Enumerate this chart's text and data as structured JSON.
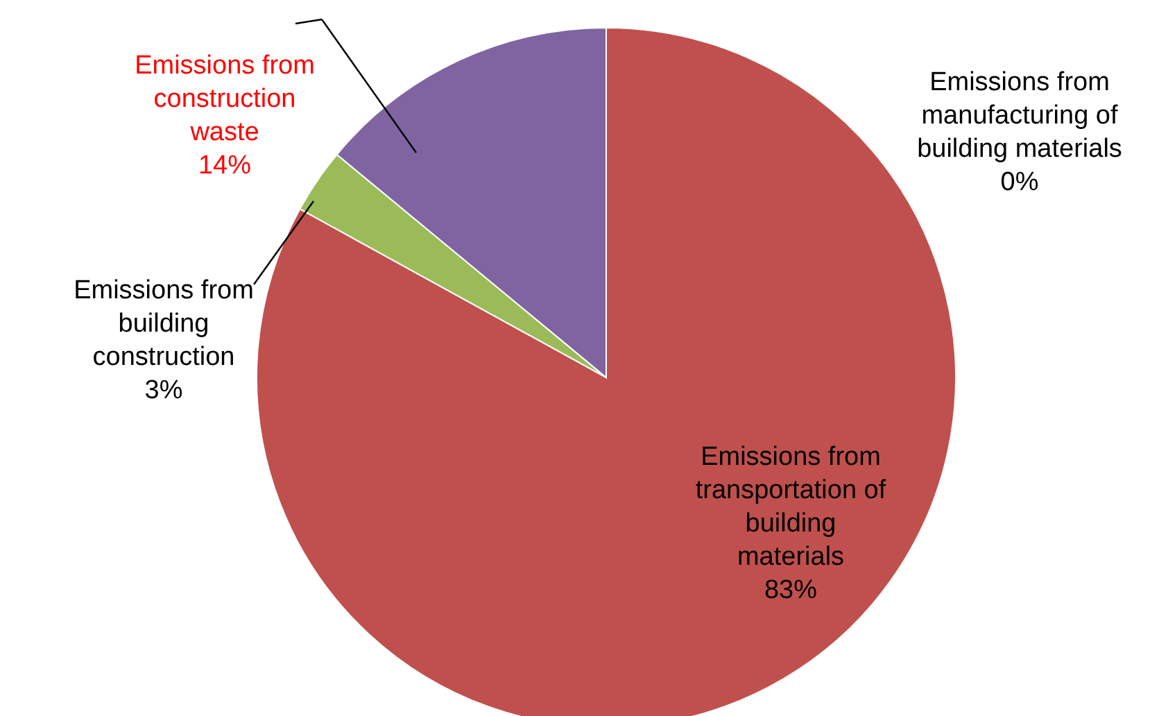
{
  "chart_data": {
    "type": "pie",
    "categories": [
      "Emissions from manufacturing of building materials",
      "Emissions from transportation of building materials",
      "Emissions from building construction",
      "Emissions from construction waste"
    ],
    "values": [
      0,
      83,
      3,
      14
    ],
    "colors": [
      "#4f81bd",
      "#c0504d",
      "#9bbb59",
      "#8064a2"
    ],
    "value_labels": [
      "0%",
      "83%",
      "3%",
      "14%"
    ]
  }
}
